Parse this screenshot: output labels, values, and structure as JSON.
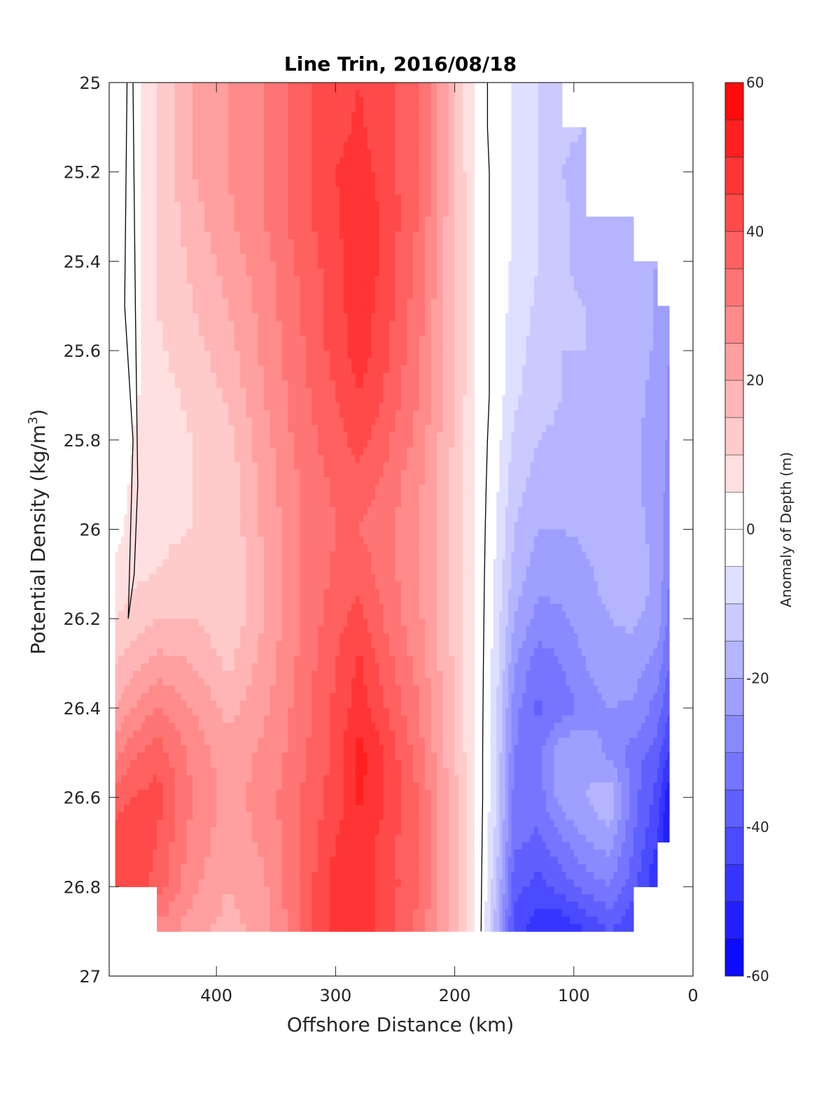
{
  "chart_data": {
    "type": "heatmap",
    "subtype": "filled-contour",
    "title": "Line Trin, 2016/08/18",
    "xlabel": "Offshore Distance (km)",
    "ylabel_main": "Potential Density (kg/m",
    "ylabel_sup": "3",
    "ylabel_end": ")",
    "colorbar_label": "Anomaly of Depth (m)",
    "x_reversed": true,
    "xlim": [
      490,
      0
    ],
    "ylim": [
      25,
      27
    ],
    "y_reversed": true,
    "x_ticks": [
      400,
      300,
      200,
      100,
      0
    ],
    "x_tick_labels": [
      "400",
      "300",
      "200",
      "100",
      "0"
    ],
    "y_ticks": [
      25,
      25.2,
      25.4,
      25.6,
      25.8,
      26,
      26.2,
      26.4,
      26.6,
      26.8,
      27
    ],
    "y_tick_labels": [
      "25",
      "25.2",
      "25.4",
      "25.6",
      "25.8",
      "26",
      "26.2",
      "26.4",
      "26.6",
      "26.8",
      "27"
    ],
    "clim": [
      -60,
      60
    ],
    "contour_step": 5,
    "colorbar_ticks": [
      60,
      40,
      20,
      0,
      -20,
      -40,
      -60
    ],
    "colorbar_tick_labels": [
      "60",
      "40",
      "20",
      "0",
      "-20",
      "-40",
      "-60"
    ],
    "colormap": "blue-white-red",
    "color_positive": "#ff0000",
    "color_zero": "#ffffff",
    "color_negative": "#0000ff",
    "zero_contour_color": "#000000",
    "data_extent": {
      "x": [
        485,
        20
      ],
      "y": [
        25,
        26.9
      ]
    },
    "grid_x": [
      485,
      470,
      450,
      420,
      390,
      360,
      330,
      300,
      280,
      260,
      230,
      200,
      180,
      165,
      150,
      130,
      110,
      90,
      70,
      50,
      30,
      20
    ],
    "grid_y": [
      25.0,
      25.1,
      25.2,
      25.3,
      25.4,
      25.5,
      25.6,
      25.7,
      25.8,
      25.9,
      26.0,
      26.1,
      26.2,
      26.3,
      26.4,
      26.5,
      26.6,
      26.7,
      26.8,
      26.9
    ],
    "anomaly": [
      [
        0,
        2,
        10,
        20,
        25,
        30,
        38,
        43,
        45,
        42,
        35,
        15,
        2,
        -2,
        -6,
        -10,
        -13,
        null,
        null,
        null,
        null,
        null
      ],
      [
        0,
        2,
        10,
        20,
        25,
        30,
        38,
        43,
        46,
        42,
        35,
        15,
        2,
        -2,
        -6,
        -10,
        -14,
        -15,
        null,
        null,
        null,
        null
      ],
      [
        0,
        2,
        10,
        20,
        25,
        30,
        38,
        45,
        48,
        43,
        35,
        15,
        3,
        -2,
        -6,
        -10,
        -15,
        -17,
        null,
        null,
        null,
        null
      ],
      [
        -2,
        2,
        10,
        18,
        24,
        30,
        38,
        44,
        50,
        44,
        35,
        15,
        3,
        -2,
        -6,
        -10,
        -14,
        -17,
        -16,
        -18,
        null,
        null
      ],
      [
        -3,
        2,
        10,
        16,
        22,
        28,
        36,
        43,
        49,
        44,
        33,
        15,
        3,
        -2,
        -6,
        -10,
        -14,
        -17,
        -16,
        -18,
        -20,
        null
      ],
      [
        -3,
        2,
        10,
        15,
        20,
        27,
        35,
        43,
        48,
        43,
        32,
        15,
        3,
        -2,
        -7,
        -11,
        -14,
        -15,
        -16,
        -17,
        -21,
        -25
      ],
      [
        -2,
        3,
        9,
        13,
        18,
        26,
        34,
        42,
        48,
        42,
        31,
        15,
        3,
        -2,
        -8,
        -12,
        -15,
        -15,
        -16,
        -17,
        -21,
        -25
      ],
      [
        0,
        4,
        8,
        11,
        16,
        25,
        33,
        40,
        45,
        40,
        30,
        15,
        3,
        -2,
        -9,
        -13,
        -15,
        -16,
        -16,
        -18,
        -22,
        -26
      ],
      [
        1,
        5,
        8,
        10,
        13,
        23,
        32,
        38,
        42,
        37,
        28,
        14,
        3,
        -3,
        -11,
        -15,
        -16,
        -17,
        -17,
        -19,
        -22,
        -26
      ],
      [
        2,
        6,
        8,
        10,
        12,
        22,
        30,
        36,
        38,
        34,
        26,
        13,
        3,
        -4,
        -13,
        -17,
        -18,
        -18,
        -17,
        -19,
        -22,
        -27
      ],
      [
        3,
        7,
        9,
        10,
        11,
        21,
        30,
        35,
        35,
        32,
        25,
        13,
        3,
        -5,
        -15,
        -20,
        -20,
        -19,
        -18,
        -18,
        -22,
        -28
      ],
      [
        6,
        9,
        10,
        12,
        10,
        20,
        30,
        36,
        38,
        33,
        25,
        13,
        3,
        -6,
        -17,
        -23,
        -23,
        -21,
        -18,
        -17,
        -21,
        -30
      ],
      [
        10,
        12,
        15,
        15,
        11,
        20,
        30,
        38,
        42,
        35,
        26,
        13,
        3,
        -7,
        -20,
        -27,
        -26,
        -22,
        -20,
        -19,
        -22,
        -32
      ],
      [
        15,
        18,
        22,
        20,
        14,
        22,
        31,
        40,
        46,
        38,
        28,
        14,
        3,
        -8,
        -24,
        -33,
        -30,
        -25,
        -22,
        -22,
        -27,
        -35
      ],
      [
        20,
        25,
        30,
        25,
        18,
        24,
        32,
        41,
        48,
        41,
        30,
        14,
        3,
        -9,
        -28,
        -36,
        -33,
        -28,
        -25,
        -26,
        -32,
        -40
      ],
      [
        28,
        34,
        38,
        28,
        22,
        26,
        33,
        42,
        52,
        45,
        32,
        15,
        3,
        -10,
        -30,
        -32,
        -20,
        -21,
        -27,
        -32,
        -38,
        -45
      ],
      [
        38,
        40,
        42,
        30,
        23,
        27,
        35,
        42,
        51,
        46,
        35,
        17,
        3,
        -10,
        -32,
        -33,
        -22,
        -20,
        -15,
        -33,
        -42,
        -55
      ],
      [
        42,
        43,
        40,
        28,
        22,
        26,
        35,
        45,
        48,
        43,
        35,
        17,
        3,
        -12,
        -34,
        -36,
        -31,
        -25,
        -23,
        -35,
        -45,
        -55
      ],
      [
        42,
        44,
        38,
        26,
        20,
        24,
        35,
        48,
        50,
        43,
        36,
        17,
        3,
        -15,
        -38,
        -42,
        -38,
        -33,
        -30,
        -38,
        -50,
        null
      ],
      [
        null,
        null,
        28,
        22,
        18,
        22,
        35,
        48,
        50,
        43,
        33,
        17,
        3,
        -18,
        -42,
        -48,
        -50,
        -45,
        -40,
        -45,
        null,
        null
      ]
    ],
    "zero_contour": [
      [
        475,
        25.0
      ],
      [
        477,
        25.5
      ],
      [
        470,
        25.8
      ],
      [
        474,
        26.2
      ],
      [
        469,
        26.1
      ],
      [
        466,
        25.9
      ],
      [
        468,
        25.5
      ],
      [
        470,
        25.0
      ]
    ]
  }
}
